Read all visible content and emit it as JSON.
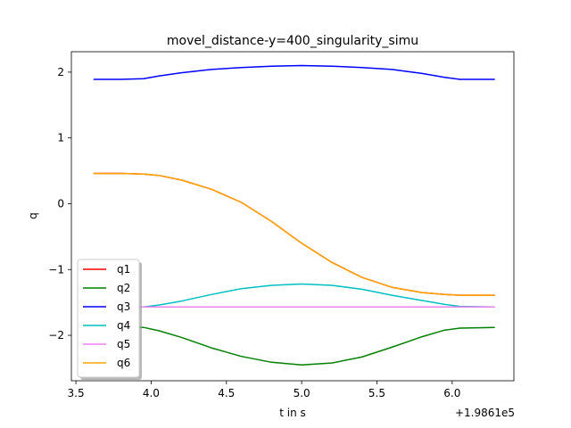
{
  "chart_data": {
    "type": "line",
    "title": "movel_distance-y=400_singularity_simu",
    "xlabel": "t in s",
    "ylabel": "q",
    "x_offset_label": "+1.9861e5",
    "xlim": [
      3.47,
      6.41
    ],
    "ylim": [
      -2.69,
      2.31
    ],
    "xticks": [
      3.5,
      4.0,
      4.5,
      5.0,
      5.5,
      6.0
    ],
    "xtick_labels": [
      "3.5",
      "4.0",
      "4.5",
      "5.0",
      "5.5",
      "6.0"
    ],
    "yticks": [
      2,
      1,
      0,
      -1,
      -2
    ],
    "ytick_labels": [
      "2",
      "1",
      "0",
      "−1",
      "−2"
    ],
    "grid": false,
    "legend_position": "lower-left",
    "x": [
      3.62,
      3.8,
      3.95,
      4.05,
      4.2,
      4.4,
      4.6,
      4.8,
      5.0,
      5.2,
      5.4,
      5.6,
      5.8,
      5.95,
      6.05,
      6.28
    ],
    "series": [
      {
        "name": "q1",
        "color": "#ff0000",
        "values": [
          0.46,
          0.46,
          0.45,
          0.43,
          0.36,
          0.22,
          0.02,
          -0.27,
          -0.6,
          -0.89,
          -1.12,
          -1.27,
          -1.35,
          -1.38,
          -1.39,
          -1.39
        ]
      },
      {
        "name": "q2",
        "color": "#008000",
        "values": [
          -1.87,
          -1.87,
          -1.88,
          -1.93,
          -2.03,
          -2.19,
          -2.32,
          -2.41,
          -2.45,
          -2.42,
          -2.33,
          -2.18,
          -2.02,
          -1.92,
          -1.89,
          -1.88
        ]
      },
      {
        "name": "q3",
        "color": "#0000ff",
        "values": [
          1.89,
          1.89,
          1.9,
          1.94,
          1.99,
          2.04,
          2.07,
          2.09,
          2.1,
          2.09,
          2.07,
          2.04,
          1.98,
          1.92,
          1.89,
          1.89
        ]
      },
      {
        "name": "q4",
        "color": "#00bfbf",
        "values": [
          -1.57,
          -1.57,
          -1.57,
          -1.54,
          -1.48,
          -1.38,
          -1.29,
          -1.24,
          -1.22,
          -1.24,
          -1.3,
          -1.39,
          -1.47,
          -1.53,
          -1.56,
          -1.57
        ]
      },
      {
        "name": "q5",
        "color": "#ee82ee",
        "values": [
          -1.57,
          -1.57,
          -1.57,
          -1.57,
          -1.57,
          -1.57,
          -1.57,
          -1.57,
          -1.57,
          -1.57,
          -1.57,
          -1.57,
          -1.57,
          -1.57,
          -1.57,
          -1.57
        ]
      },
      {
        "name": "q6",
        "color": "#ffa500",
        "values": [
          0.46,
          0.46,
          0.45,
          0.43,
          0.36,
          0.22,
          0.02,
          -0.27,
          -0.6,
          -0.89,
          -1.12,
          -1.27,
          -1.35,
          -1.38,
          -1.39,
          -1.39
        ]
      }
    ]
  }
}
